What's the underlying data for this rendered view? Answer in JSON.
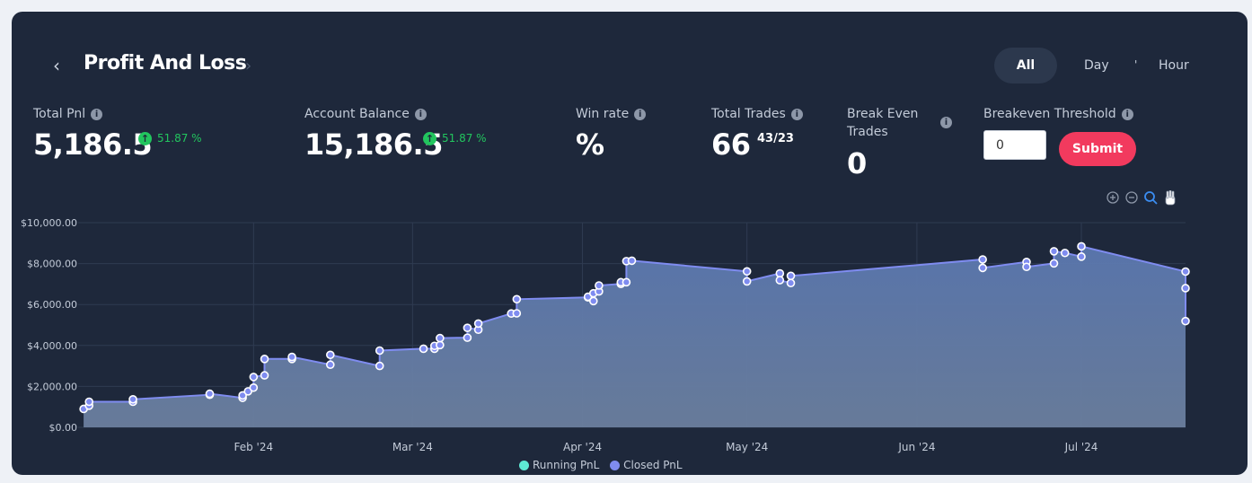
{
  "header": {
    "title": "Profit And Loss",
    "nav_prev": "‹",
    "nav_next": "›"
  },
  "range_tabs": {
    "all": "All",
    "day": "Day",
    "separator": "'",
    "hour": "Hour",
    "selected": "All"
  },
  "stats": {
    "total_pnl": {
      "label": "Total Pnl",
      "value": "5,186.5",
      "change": "51.87 %"
    },
    "account_balance": {
      "label": "Account Balance",
      "value": "15,186.5",
      "change": "51.87 %"
    },
    "win_rate": {
      "label": "Win rate",
      "value": "%"
    },
    "total_trades": {
      "label": "Total Trades",
      "value": "66",
      "split": "43/23"
    },
    "break_even": {
      "label_line1": "Break Even",
      "label_line2": "Trades",
      "value": "0"
    },
    "threshold": {
      "label": "Breakeven Threshold",
      "input_value": "0",
      "submit_label": "Submit"
    }
  },
  "chart_toolbar": {
    "zoom_in": "zoom-in-icon",
    "zoom_out": "zoom-out-icon",
    "zoom_select": "magnifier-icon",
    "pan": "hand-icon"
  },
  "colors": {
    "card_bg": "#1e283b",
    "accent_green": "#22c55e",
    "submit_red": "#f23a5e",
    "series_closed": "#7f8cf0",
    "series_running": "#5eead4"
  },
  "chart_data": {
    "type": "area",
    "x_type": "date",
    "yticks": [
      "$10,000.00",
      "$8,000.00",
      "$6,000.00",
      "$4,000.00",
      "$2,000.00",
      "$0.00"
    ],
    "xticks": [
      "Feb '24",
      "Mar '24",
      "Apr '24",
      "May '24",
      "Jun '24",
      "Jul '24"
    ],
    "ylim": [
      0,
      10000
    ],
    "grid": true,
    "legend_position": "bottom",
    "legend": [
      "Running PnL",
      "Closed PnL"
    ],
    "series": [
      {
        "name": "Closed PnL",
        "points": [
          [
            "2024-01-01",
            900
          ],
          [
            "2024-01-02",
            1060
          ],
          [
            "2024-01-02",
            1250
          ],
          [
            "2024-01-10",
            1250
          ],
          [
            "2024-01-10",
            1370
          ],
          [
            "2024-01-24",
            1590
          ],
          [
            "2024-01-24",
            1640
          ],
          [
            "2024-01-30",
            1440
          ],
          [
            "2024-01-30",
            1560
          ],
          [
            "2024-01-31",
            1760
          ],
          [
            "2024-02-01",
            1940
          ],
          [
            "2024-02-01",
            2460
          ],
          [
            "2024-02-03",
            2540
          ],
          [
            "2024-02-03",
            3340
          ],
          [
            "2024-02-08",
            3340
          ],
          [
            "2024-02-08",
            3440
          ],
          [
            "2024-02-15",
            3060
          ],
          [
            "2024-02-15",
            3540
          ],
          [
            "2024-02-24",
            3000
          ],
          [
            "2024-02-24",
            3750
          ],
          [
            "2024-03-03",
            3840
          ],
          [
            "2024-03-05",
            3840
          ],
          [
            "2024-03-05",
            3980
          ],
          [
            "2024-03-06",
            4020
          ],
          [
            "2024-03-06",
            4360
          ],
          [
            "2024-03-11",
            4380
          ],
          [
            "2024-03-11",
            4860
          ],
          [
            "2024-03-13",
            4770
          ],
          [
            "2024-03-13",
            5070
          ],
          [
            "2024-03-19",
            5560
          ],
          [
            "2024-03-20",
            5570
          ],
          [
            "2024-03-20",
            6260
          ],
          [
            "2024-04-02",
            6350
          ],
          [
            "2024-04-02",
            6380
          ],
          [
            "2024-04-03",
            6170
          ],
          [
            "2024-04-03",
            6550
          ],
          [
            "2024-04-04",
            6640
          ],
          [
            "2024-04-04",
            6930
          ],
          [
            "2024-04-08",
            7010
          ],
          [
            "2024-04-08",
            7090
          ],
          [
            "2024-04-09",
            7090
          ],
          [
            "2024-04-09",
            8120
          ],
          [
            "2024-04-10",
            8140
          ],
          [
            "2024-05-01",
            7620
          ],
          [
            "2024-05-01",
            7130
          ],
          [
            "2024-05-07",
            7520
          ],
          [
            "2024-05-07",
            7190
          ],
          [
            "2024-05-09",
            7050
          ],
          [
            "2024-05-09",
            7400
          ],
          [
            "2024-06-13",
            8200
          ],
          [
            "2024-06-13",
            7790
          ],
          [
            "2024-06-21",
            8080
          ],
          [
            "2024-06-21",
            7840
          ],
          [
            "2024-06-26",
            8010
          ],
          [
            "2024-06-26",
            8600
          ],
          [
            "2024-06-28",
            8520
          ],
          [
            "2024-07-01",
            8340
          ],
          [
            "2024-07-01",
            8840
          ],
          [
            "2024-07-20",
            7610
          ],
          [
            "2024-07-20",
            6800
          ],
          [
            "2024-07-20",
            5190
          ]
        ]
      }
    ]
  }
}
